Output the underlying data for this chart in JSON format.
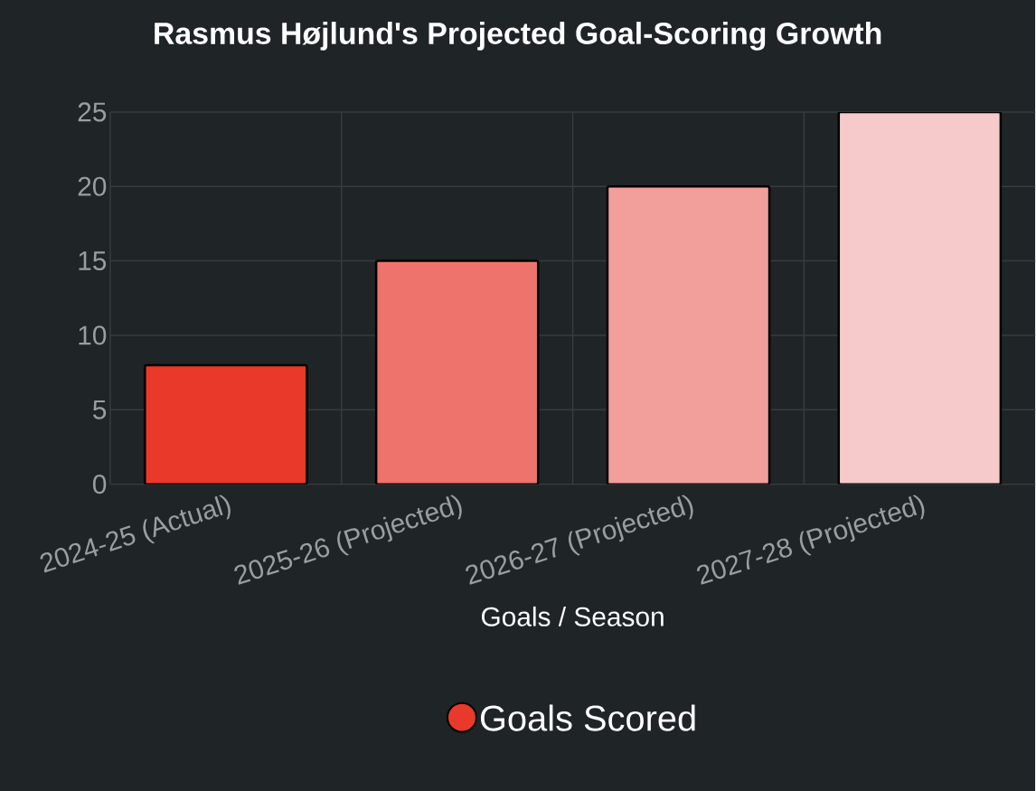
{
  "chart_data": {
    "type": "bar",
    "title": "Rasmus Højlund's Projected Goal-Scoring Growth",
    "xlabel": "Goals / Season",
    "categories": [
      "2024-25 (Actual)",
      "2025-26 (Projected)",
      "2026-27 (Projected)",
      "2027-28 (Projected)"
    ],
    "series": [
      {
        "name": "Goals Scored",
        "colors": [
          "#e8392a",
          "#ee736c",
          "#f29e9b",
          "#f6cacb"
        ],
        "values": [
          8,
          15,
          20,
          25
        ]
      }
    ],
    "ylim": [
      0,
      25
    ],
    "yticks": [
      0,
      5,
      10,
      15,
      20,
      25
    ],
    "grid": true,
    "legend": "bottom"
  }
}
